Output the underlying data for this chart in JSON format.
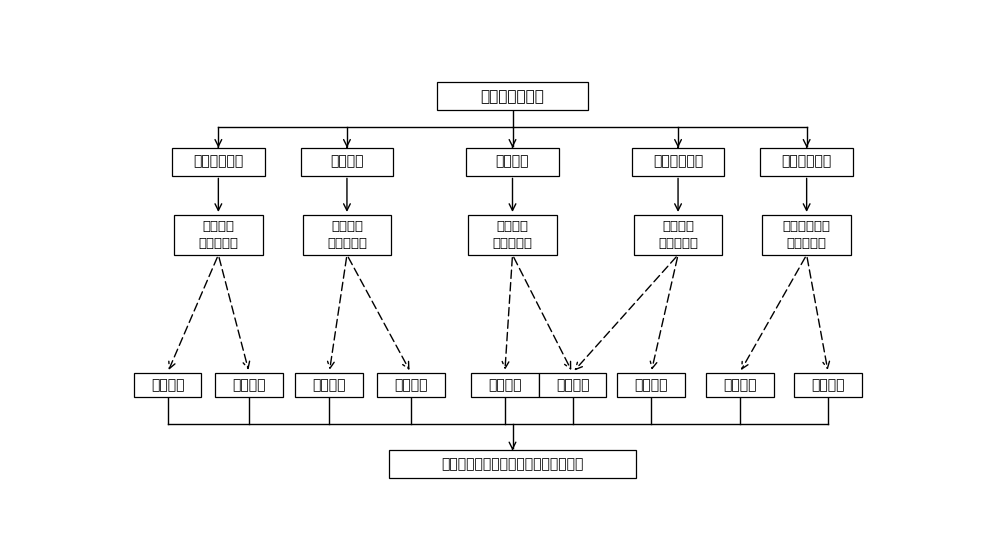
{
  "title": "传感网节点管理",
  "level2": [
    "一般属性管理",
    "性能管理",
    "状态管理",
    "服务接口管理",
    "访问约束管理"
  ],
  "level3": [
    "节点标签\n元数据构件",
    "节点性能\n元数据构件",
    "节点状态\n元数据构件",
    "节点服务\n元数据构件",
    "节点可访问性\n元数据构件"
  ],
  "level4": [
    "标识信息",
    "特征信息",
    "能力信息",
    "质量信息",
    "时空信息",
    "运行信息",
    "服务信息",
    "管理信息",
    "约束信息"
  ],
  "bottom": "传感网节点元模型九元组信息描述结构",
  "bg_color": "#ffffff",
  "box_color": "#ffffff",
  "box_edge": "#000000",
  "text_color": "#000000",
  "arrow_color": "#000000"
}
